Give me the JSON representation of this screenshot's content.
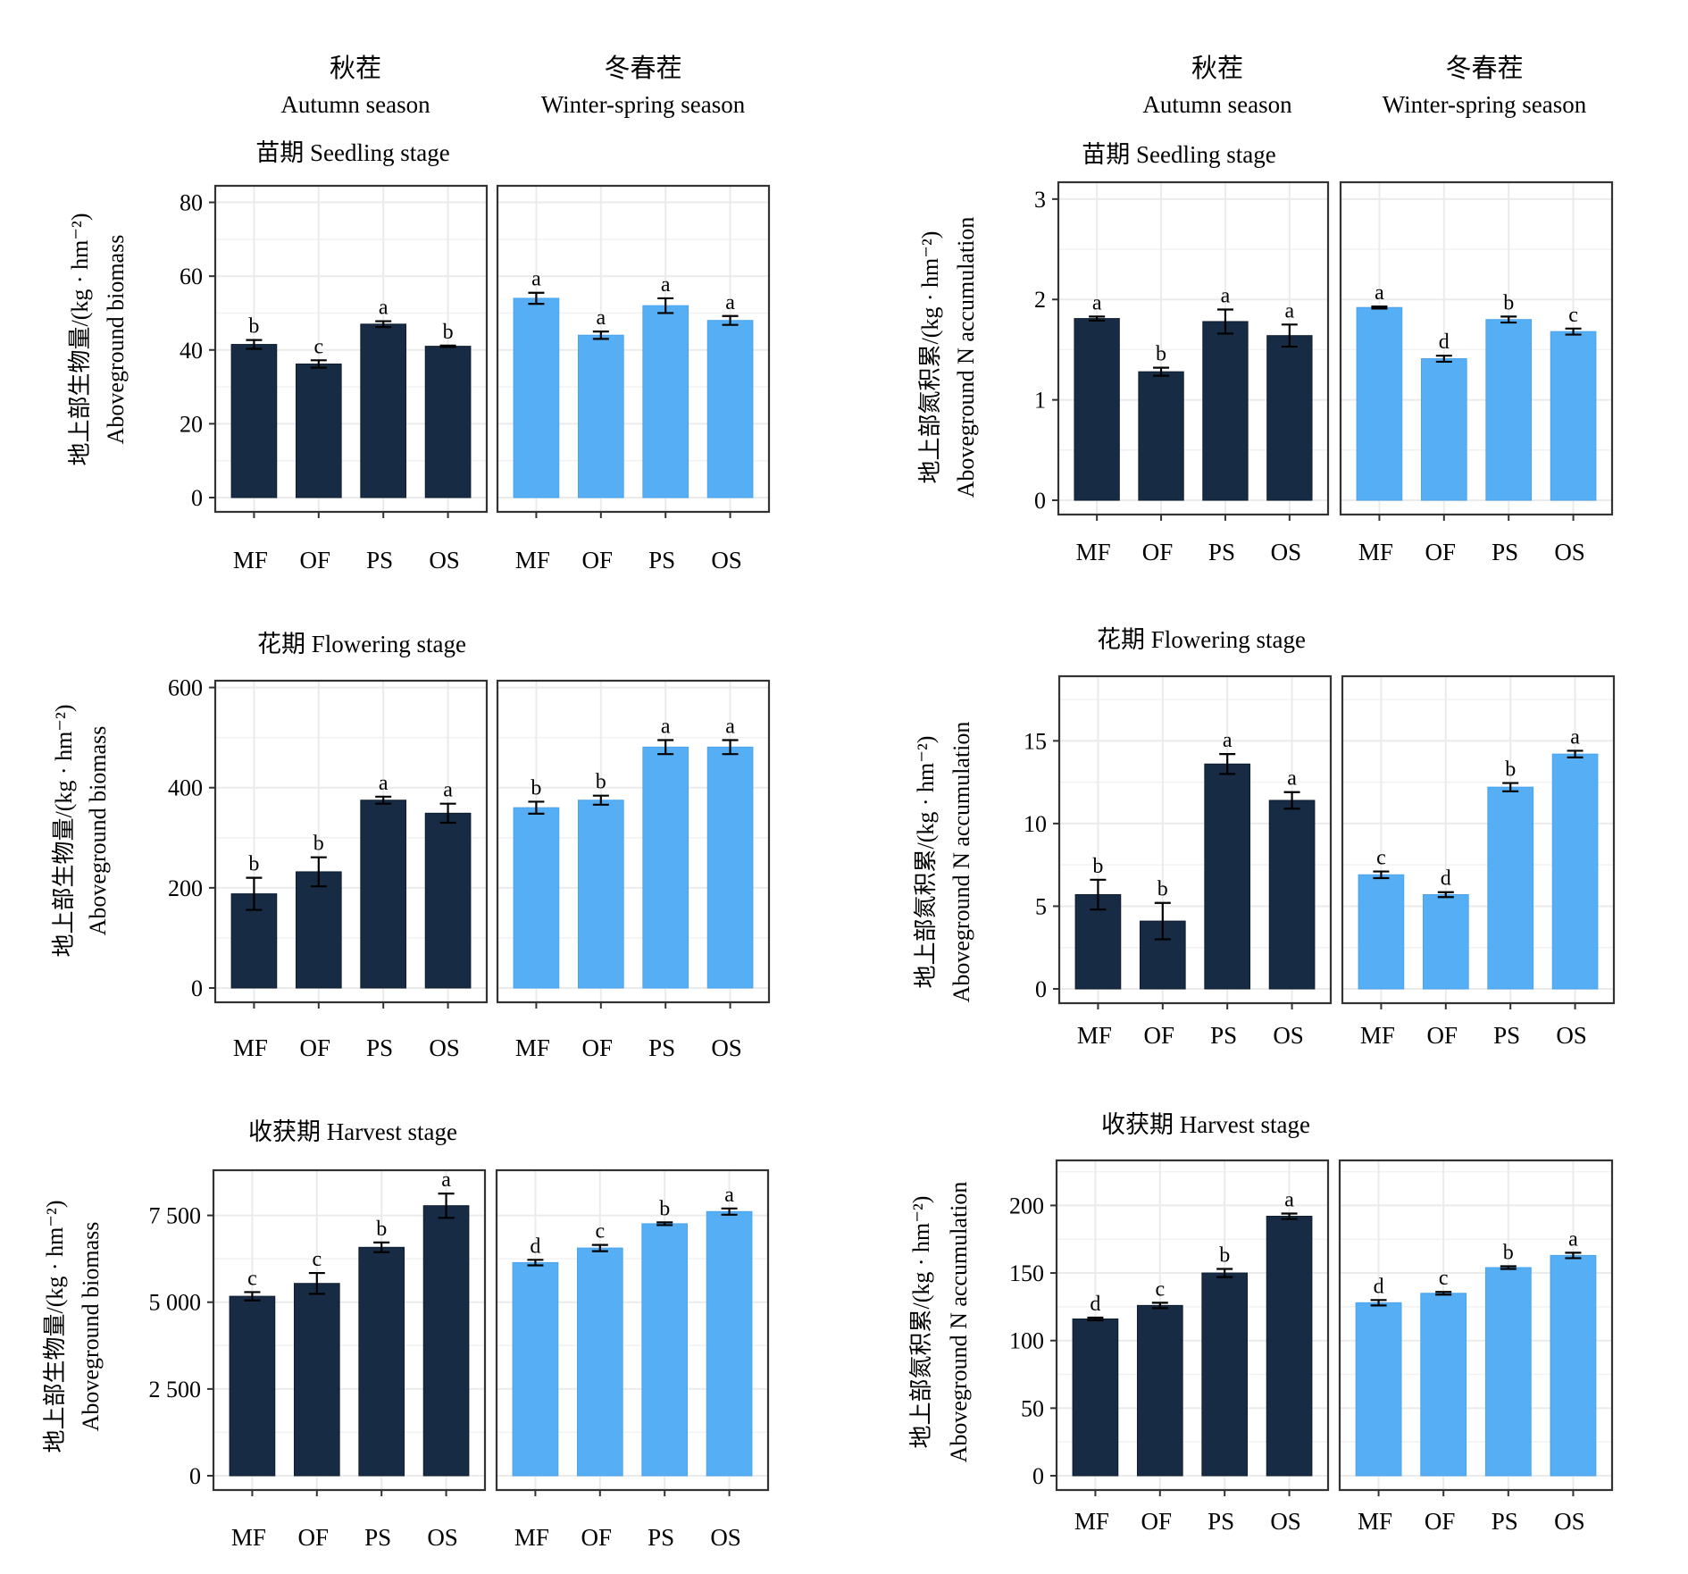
{
  "figure": {
    "seasons": [
      {
        "cn": "秋茬",
        "en": "Autumn season"
      },
      {
        "cn": "冬春茬",
        "en": "Winter-spring season"
      }
    ],
    "colors": {
      "autumn": "#172b45",
      "winter_spring": "#56aff5"
    },
    "y_labels": {
      "biomass": {
        "cn": "地上部生物量/(kg · hm⁻²)",
        "en": "Aboveground biomass"
      },
      "nitrogen": {
        "cn": "地上部氮积累/(kg · hm⁻²)",
        "en": "Aboveground N accumulation"
      }
    }
  },
  "chart_data": [
    {
      "id": "biomass-seedling",
      "type": "bar",
      "title": "苗期 Seedling stage",
      "ylabel": "地上部生物量/(kg · hm⁻²) Aboveground biomass",
      "ylim": [
        0,
        84
      ],
      "yticks": [
        0,
        20,
        40,
        60,
        80
      ],
      "ytick_labels": [
        "0",
        "20",
        "40",
        "60",
        "80"
      ],
      "categories": [
        "MF",
        "OF",
        "PS",
        "OS"
      ],
      "series": [
        {
          "name": "Autumn season",
          "values": [
            41.5,
            36.2,
            47.0,
            41.0
          ],
          "errors": [
            1.2,
            1.0,
            0.8,
            0.2
          ],
          "letters": [
            "b",
            "c",
            "a",
            "b"
          ]
        },
        {
          "name": "Winter-spring season",
          "values": [
            54.0,
            44.0,
            52.0,
            48.0
          ],
          "errors": [
            1.5,
            1.0,
            2.0,
            1.2
          ],
          "letters": [
            "a",
            "a",
            "a",
            "a"
          ]
        }
      ]
    },
    {
      "id": "nitrogen-seedling",
      "type": "bar",
      "title": "苗期 Seedling stage",
      "ylabel": "地上部氮积累/(kg · hm⁻²) Aboveground N accumulation",
      "ylim": [
        0,
        3.15
      ],
      "yticks": [
        0,
        1,
        2,
        3
      ],
      "ytick_labels": [
        "0",
        "1",
        "2",
        "3"
      ],
      "categories": [
        "MF",
        "OF",
        "PS",
        "OS"
      ],
      "series": [
        {
          "name": "Autumn season",
          "values": [
            1.81,
            1.28,
            1.78,
            1.64
          ],
          "errors": [
            0.02,
            0.04,
            0.12,
            0.11
          ],
          "letters": [
            "a",
            "b",
            "a",
            "a"
          ]
        },
        {
          "name": "Winter-spring season",
          "values": [
            1.92,
            1.41,
            1.8,
            1.68
          ],
          "errors": [
            0.01,
            0.03,
            0.03,
            0.03
          ],
          "letters": [
            "a",
            "d",
            "b",
            "c"
          ]
        }
      ]
    },
    {
      "id": "biomass-flowering",
      "type": "bar",
      "title": "花期 Flowering stage",
      "ylabel": "地上部生物量/(kg · hm⁻²) Aboveground biomass",
      "ylim": [
        0,
        610
      ],
      "yticks": [
        0,
        200,
        400,
        600
      ],
      "ytick_labels": [
        "0",
        "200",
        "400",
        "600"
      ],
      "categories": [
        "MF",
        "OF",
        "PS",
        "OS"
      ],
      "series": [
        {
          "name": "Autumn season",
          "values": [
            188,
            232,
            375,
            349
          ],
          "errors": [
            32,
            29,
            7,
            19
          ],
          "letters": [
            "b",
            "b",
            "a",
            "a"
          ]
        },
        {
          "name": "Winter-spring season",
          "values": [
            360,
            375,
            481,
            481
          ],
          "errors": [
            12,
            9,
            14,
            14
          ],
          "letters": [
            "b",
            "b",
            "a",
            "a"
          ]
        }
      ]
    },
    {
      "id": "nitrogen-flowering",
      "type": "bar",
      "title": "花期 Flowering stage",
      "ylabel": "地上部氮积累/(kg · hm⁻²) Aboveground N accumulation",
      "ylim": [
        0,
        18.8
      ],
      "yticks": [
        0,
        5,
        10,
        15
      ],
      "ytick_labels": [
        "0",
        "5",
        "10",
        "15"
      ],
      "categories": [
        "MF",
        "OF",
        "PS",
        "OS"
      ],
      "series": [
        {
          "name": "Autumn season",
          "values": [
            5.7,
            4.1,
            13.6,
            11.4
          ],
          "errors": [
            0.9,
            1.1,
            0.6,
            0.5
          ],
          "letters": [
            "b",
            "b",
            "a",
            "a"
          ]
        },
        {
          "name": "Winter-spring season",
          "values": [
            6.9,
            5.7,
            12.2,
            14.2
          ],
          "errors": [
            0.2,
            0.15,
            0.25,
            0.2
          ],
          "letters": [
            "c",
            "d",
            "b",
            "a"
          ]
        }
      ]
    },
    {
      "id": "biomass-harvest",
      "type": "bar",
      "title": "收获期 Harvest stage",
      "ylabel": "地上部生物量/(kg · hm⁻²) Aboveground biomass",
      "ylim": [
        0,
        8750
      ],
      "yticks": [
        0,
        2500,
        5000,
        7500
      ],
      "ytick_labels": [
        "0",
        "2 500",
        "5 000",
        "7 500"
      ],
      "categories": [
        "MF",
        "OF",
        "PS",
        "OS"
      ],
      "series": [
        {
          "name": "Autumn season",
          "values": [
            5170,
            5540,
            6580,
            7780
          ],
          "errors": [
            120,
            300,
            140,
            350
          ],
          "letters": [
            "c",
            "c",
            "b",
            "a"
          ]
        },
        {
          "name": "Winter-spring season",
          "values": [
            6140,
            6560,
            7260,
            7610
          ],
          "errors": [
            80,
            90,
            40,
            90
          ],
          "letters": [
            "d",
            "c",
            "b",
            "a"
          ]
        }
      ]
    },
    {
      "id": "nitrogen-harvest",
      "type": "bar",
      "title": "收获期 Harvest stage",
      "ylabel": "地上部氮积累/(kg · hm⁻²) Aboveground N accumulation",
      "ylim": [
        0,
        232
      ],
      "yticks": [
        0,
        50,
        100,
        150,
        200
      ],
      "ytick_labels": [
        "0",
        "50",
        "100",
        "150",
        "200"
      ],
      "categories": [
        "MF",
        "OF",
        "PS",
        "OS"
      ],
      "series": [
        {
          "name": "Autumn season",
          "values": [
            116,
            126,
            150,
            192
          ],
          "errors": [
            1,
            2,
            3,
            2
          ],
          "letters": [
            "d",
            "c",
            "b",
            "a"
          ]
        },
        {
          "name": "Winter-spring season",
          "values": [
            128,
            135,
            154,
            163
          ],
          "errors": [
            2,
            1,
            1,
            2
          ],
          "letters": [
            "d",
            "c",
            "b",
            "a"
          ]
        }
      ]
    }
  ]
}
